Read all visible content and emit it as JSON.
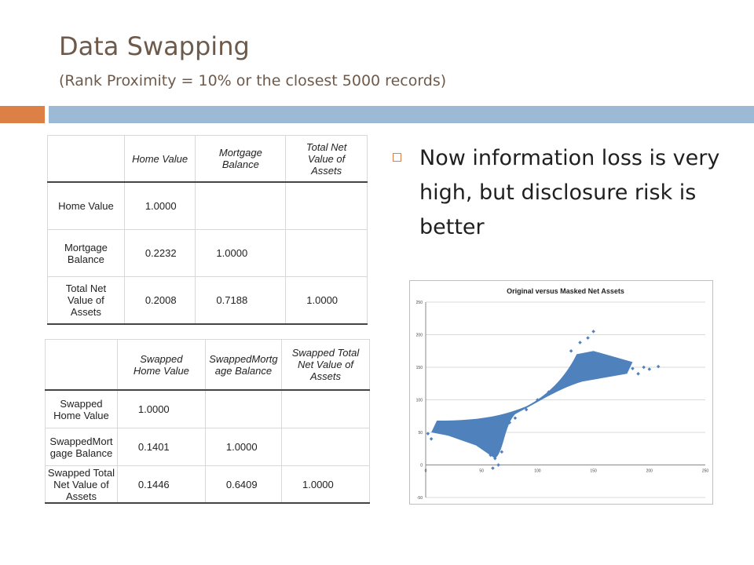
{
  "slide": {
    "title": "Data Swapping",
    "subtitle": "(Rank Proximity = 10% or the closest 5000 records)",
    "bullet": "Now information loss is very high, but disclosure risk is better"
  },
  "table1": {
    "headers": [
      "",
      "Home Value",
      "Mortgage Balance",
      "Total Net Value of Assets"
    ],
    "rows": [
      {
        "label": "Home Value",
        "cells": [
          "1.0000",
          "",
          ""
        ]
      },
      {
        "label": "Mortgage Balance",
        "cells": [
          "0.2232",
          "1.0000",
          ""
        ]
      },
      {
        "label": "Total Net Value of Assets",
        "cells": [
          "0.2008",
          "0.7188",
          "1.0000"
        ]
      }
    ]
  },
  "table2": {
    "headers": [
      "",
      "Swapped Home Value",
      "SwappedMortgage Balance",
      "Swapped Total Net Value of Assets"
    ],
    "rows": [
      {
        "label": "Swapped Home Value",
        "cells": [
          "1.0000",
          "",
          ""
        ]
      },
      {
        "label": "SwappedMortgage Balance",
        "cells": [
          "0.1401",
          "1.0000",
          ""
        ]
      },
      {
        "label": "Swapped Total Net Value of Assets",
        "cells": [
          "0.1446",
          "0.6409",
          "1.0000"
        ]
      }
    ]
  },
  "chart_data": {
    "type": "scatter",
    "title": "Original versus Masked Net Assets",
    "xlabel": "",
    "ylabel": "",
    "xlim": [
      0,
      250
    ],
    "ylim": [
      -50,
      250
    ],
    "xticks": [
      "0",
      "50",
      "100",
      "150",
      "200",
      "250"
    ],
    "yticks": [
      "-50",
      "0",
      "50",
      "100",
      "150",
      "200",
      "250"
    ],
    "grid": "horizontal",
    "series": [
      {
        "color": "#4f81bd",
        "x": [
          2,
          5,
          10,
          15,
          20,
          25,
          30,
          35,
          40,
          45,
          50,
          55,
          60,
          65,
          70,
          75,
          80,
          90,
          100,
          110,
          120,
          128,
          135,
          140,
          145,
          150,
          155,
          160,
          165,
          170,
          175,
          180,
          185,
          190,
          195,
          200,
          208,
          60,
          65,
          62,
          58,
          68,
          145,
          150,
          138,
          130
        ],
        "y": [
          48,
          40,
          55,
          62,
          60,
          65,
          58,
          52,
          60,
          55,
          50,
          45,
          35,
          48,
          58,
          65,
          72,
          85,
          100,
          112,
          122,
          130,
          140,
          145,
          150,
          148,
          152,
          145,
          150,
          148,
          150,
          145,
          148,
          140,
          150,
          147,
          151,
          -5,
          0,
          10,
          15,
          20,
          195,
          205,
          188,
          175
        ]
      }
    ]
  }
}
